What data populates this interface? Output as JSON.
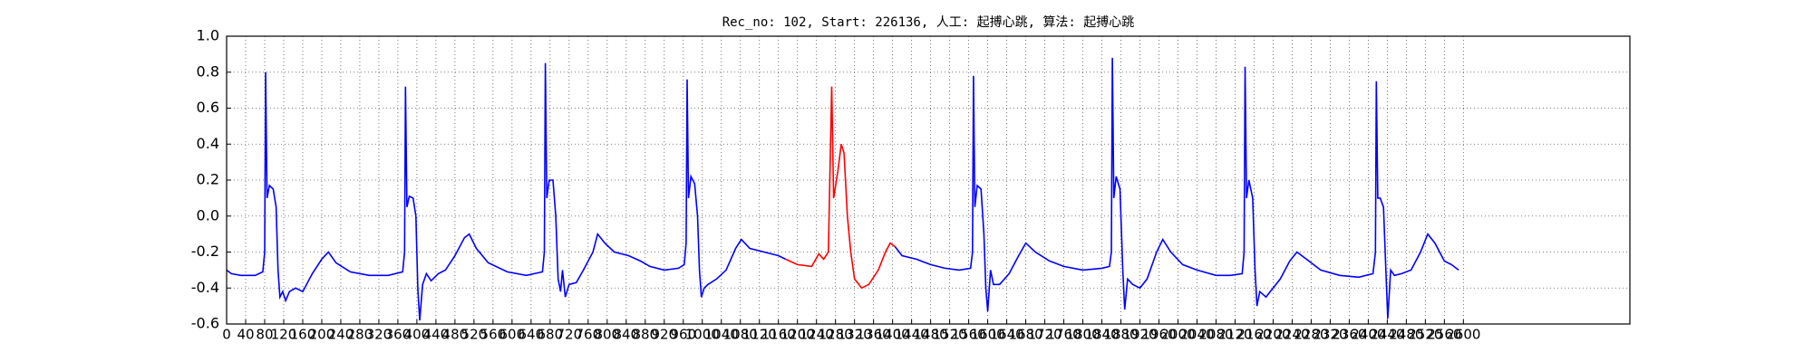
{
  "chart_data": {
    "type": "line",
    "title": "Rec_no: 102, Start: 226136, 人工: 起搏心跳, 算法: 起搏心跳",
    "xlim": [
      0,
      2950
    ],
    "ylim": [
      -0.6,
      1.0
    ],
    "xticks": [
      0,
      40,
      80,
      120,
      160,
      200,
      240,
      280,
      320,
      360,
      400,
      440,
      480,
      520,
      560,
      600,
      640,
      680,
      720,
      760,
      800,
      840,
      880,
      920,
      960,
      1000,
      1040,
      1080,
      1120,
      1160,
      1200,
      1240,
      1280,
      1320,
      1360,
      1400,
      1440,
      1480,
      1520,
      1560,
      1600,
      1640,
      1680,
      1720,
      1760,
      1800,
      1840,
      1880,
      1920,
      1960,
      2000,
      2040,
      2080,
      2120,
      2160,
      2200,
      2240,
      2280,
      2320,
      2360,
      2400,
      2440,
      2480,
      2520,
      2560,
      2600
    ],
    "yticks": [
      {
        "value": 1.0,
        "label": "1.0"
      },
      0.8,
      0.6,
      0.4,
      0.2,
      {
        "value": 0.0,
        "label": "0.0"
      },
      -0.2,
      -0.4,
      -0.6
    ],
    "grid": true,
    "series": [
      {
        "color": "#0000ff",
        "x": [
          0,
          10,
          30,
          60,
          76,
          80,
          82,
          85,
          90,
          98,
          104,
          108,
          112,
          118,
          124,
          132,
          145,
          160,
          180,
          200,
          214,
          230,
          260,
          300,
          340,
          370,
          374,
          376,
          379,
          384,
          392,
          398,
          402,
          406,
          412,
          420,
          430,
          445,
          460,
          480,
          500,
          510,
          525,
          550,
          590,
          630,
          664,
          668,
          670,
          673,
          678,
          686,
          692,
          697,
          702,
          706,
          712,
          720,
          735,
          750,
          770,
          780,
          795,
          815,
          845,
          870,
          890,
          920,
          950,
          962,
          966,
          968,
          971,
          976,
          984,
          990,
          994,
          998,
          1004,
          1012,
          1030,
          1050,
          1070,
          1082,
          1100,
          1130,
          1160,
          1175,
          1290,
          1405,
          1420,
          1450,
          1480,
          1510,
          1540,
          1564,
          1568,
          1570,
          1573,
          1578,
          1586,
          1592,
          1596,
          1600,
          1606,
          1612,
          1625,
          1645,
          1665,
          1680,
          1700,
          1730,
          1760,
          1800,
          1840,
          1856,
          1860,
          1862,
          1865,
          1870,
          1878,
          1884,
          1888,
          1894,
          1905,
          1920,
          1935,
          1955,
          1968,
          1985,
          2010,
          2040,
          2080,
          2110,
          2135,
          2139,
          2141,
          2144,
          2149,
          2157,
          2162,
          2166,
          2172,
          2185,
          2200,
          2215,
          2235,
          2250,
          2270,
          2300,
          2340,
          2380,
          2410,
          2415,
          2417,
          2420,
          2425,
          2432,
          2437,
          2441,
          2447,
          2455,
          2470,
          2490,
          2510,
          2525,
          2540,
          2560,
          2575,
          2590
        ],
        "values": [
          -0.3,
          -0.32,
          -0.33,
          -0.33,
          -0.31,
          -0.2,
          0.8,
          0.1,
          0.17,
          0.15,
          0.05,
          -0.3,
          -0.45,
          -0.42,
          -0.47,
          -0.42,
          -0.4,
          -0.42,
          -0.32,
          -0.24,
          -0.2,
          -0.26,
          -0.31,
          -0.33,
          -0.33,
          -0.31,
          -0.2,
          0.72,
          0.05,
          0.11,
          0.1,
          0.0,
          -0.4,
          -0.58,
          -0.38,
          -0.32,
          -0.36,
          -0.32,
          -0.3,
          -0.22,
          -0.12,
          -0.1,
          -0.18,
          -0.26,
          -0.31,
          -0.33,
          -0.31,
          -0.2,
          0.85,
          0.1,
          0.2,
          0.2,
          0.0,
          -0.35,
          -0.42,
          -0.3,
          -0.45,
          -0.38,
          -0.37,
          -0.3,
          -0.2,
          -0.1,
          -0.15,
          -0.2,
          -0.22,
          -0.25,
          -0.28,
          -0.3,
          -0.29,
          -0.27,
          -0.15,
          0.76,
          0.1,
          0.22,
          0.18,
          0.0,
          -0.3,
          -0.45,
          -0.4,
          -0.38,
          -0.35,
          -0.3,
          -0.18,
          -0.13,
          -0.18,
          -0.2,
          -0.22,
          -0.24,
          null,
          -0.17,
          -0.22,
          -0.24,
          -0.27,
          -0.29,
          -0.3,
          -0.29,
          -0.2,
          0.78,
          0.05,
          0.17,
          0.15,
          -0.1,
          -0.4,
          -0.53,
          -0.3,
          -0.38,
          -0.38,
          -0.32,
          -0.22,
          -0.15,
          -0.2,
          -0.25,
          -0.28,
          -0.3,
          -0.29,
          -0.28,
          -0.2,
          0.88,
          0.1,
          0.22,
          0.15,
          -0.3,
          -0.52,
          -0.35,
          -0.38,
          -0.4,
          -0.35,
          -0.2,
          -0.13,
          -0.2,
          -0.27,
          -0.3,
          -0.33,
          -0.33,
          -0.32,
          -0.2,
          0.83,
          0.1,
          0.2,
          0.1,
          -0.3,
          -0.5,
          -0.42,
          -0.45,
          -0.4,
          -0.35,
          -0.25,
          -0.2,
          -0.24,
          -0.3,
          -0.33,
          -0.34,
          -0.32,
          -0.2,
          0.75,
          0.1,
          0.1,
          0.05,
          -0.3,
          -0.57,
          -0.3,
          -0.33,
          -0.32,
          -0.3,
          -0.2,
          -0.1,
          -0.15,
          -0.25,
          -0.27,
          -0.3
        ]
      },
      {
        "color": "#ff0000",
        "x": [
          1175,
          1200,
          1230,
          1245,
          1255,
          1265,
          1272,
          1276,
          1285,
          1292,
          1298,
          1305,
          1312,
          1320,
          1335,
          1350,
          1370,
          1385,
          1395,
          1405
        ],
        "values": [
          -0.24,
          -0.27,
          -0.28,
          -0.21,
          -0.24,
          -0.2,
          0.72,
          0.1,
          0.25,
          0.4,
          0.35,
          0.0,
          -0.2,
          -0.35,
          -0.4,
          -0.38,
          -0.3,
          -0.2,
          -0.15,
          -0.17
        ]
      }
    ]
  }
}
